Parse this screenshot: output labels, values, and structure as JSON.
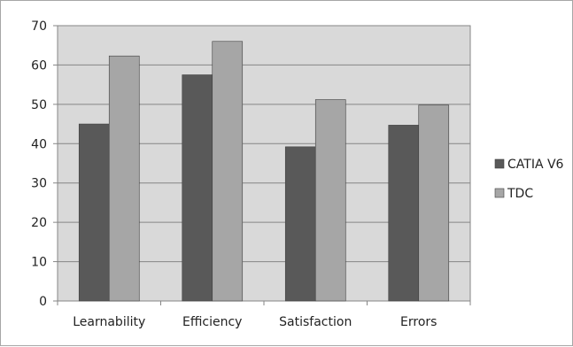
{
  "chart_data": {
    "type": "bar",
    "categories": [
      "Learnability",
      "Efficiency",
      "Satisfaction",
      "Errors"
    ],
    "series": [
      {
        "name": "CATIA V6",
        "values": [
          45,
          57.5,
          39.2,
          44.7
        ],
        "color": "#595959"
      },
      {
        "name": "TDC",
        "values": [
          62.3,
          66,
          51.2,
          49.8
        ],
        "color": "#a6a6a6"
      }
    ],
    "ylim": [
      0,
      70
    ],
    "yticks": [
      "0",
      "10",
      "20",
      "30",
      "40",
      "50",
      "60",
      "70"
    ],
    "grid": true,
    "plot_background": "#d9d9d9",
    "legend_position": "right"
  }
}
